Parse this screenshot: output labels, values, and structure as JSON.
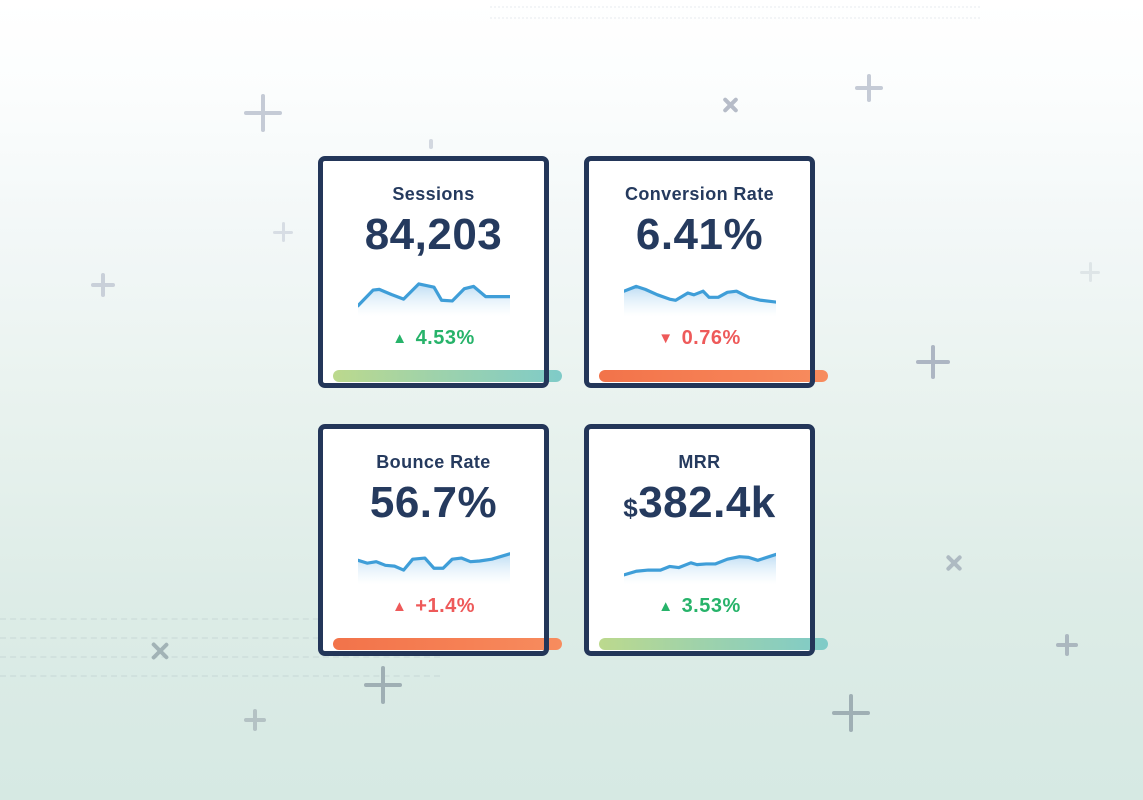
{
  "cards": [
    {
      "id": "sessions",
      "title": "Sessions",
      "value_prefix": "",
      "value": "84,203",
      "delta_icon": "▲",
      "delta": "4.53%",
      "delta_direction": "up",
      "delta_sentiment": "positive",
      "trend_bar": "green-teal-gradient"
    },
    {
      "id": "conversion-rate",
      "title": "Conversion Rate",
      "value_prefix": "",
      "value": "6.41%",
      "delta_icon": "▼",
      "delta": "0.76%",
      "delta_direction": "down",
      "delta_sentiment": "negative",
      "trend_bar": "orange-gradient"
    },
    {
      "id": "bounce-rate",
      "title": "Bounce Rate",
      "value_prefix": "",
      "value": "56.7%",
      "delta_icon": "▲",
      "delta": "+1.4%",
      "delta_direction": "up",
      "delta_sentiment": "negative",
      "trend_bar": "orange-gradient"
    },
    {
      "id": "mrr",
      "title": "MRR",
      "value_prefix": "$",
      "value": "382.4k",
      "delta_icon": "▲",
      "delta": "3.53%",
      "delta_direction": "up",
      "delta_sentiment": "positive",
      "trend_bar": "green-teal-gradient"
    }
  ],
  "chart_data": [
    {
      "type": "line",
      "title": "Sessions sparkline",
      "x": [
        0,
        10,
        14,
        22,
        30,
        40,
        50,
        55,
        62,
        70,
        76,
        84,
        100
      ],
      "values": [
        15,
        58,
        60,
        46,
        33,
        75,
        66,
        30,
        28,
        62,
        68,
        40,
        40
      ],
      "xlabel": "",
      "ylabel": "",
      "axes": "none",
      "grid": false,
      "line_color": "#3f9ed8",
      "fill": "blue-fade-gradient"
    },
    {
      "type": "line",
      "title": "Conversion Rate sparkline",
      "x": [
        0,
        8,
        14,
        22,
        30,
        34,
        42,
        46,
        52,
        56,
        62,
        68,
        74,
        82,
        90,
        100
      ],
      "values": [
        55,
        68,
        60,
        45,
        33,
        30,
        50,
        45,
        55,
        38,
        38,
        52,
        55,
        38,
        30,
        25
      ],
      "xlabel": "",
      "ylabel": "",
      "axes": "none",
      "grid": false,
      "line_color": "#3f9ed8",
      "fill": "blue-fade-gradient"
    },
    {
      "type": "line",
      "title": "Bounce Rate sparkline",
      "x": [
        0,
        6,
        12,
        18,
        24,
        30,
        36,
        44,
        50,
        56,
        62,
        68,
        74,
        80,
        88,
        100
      ],
      "values": [
        52,
        44,
        48,
        38,
        36,
        25,
        55,
        58,
        30,
        30,
        55,
        58,
        48,
        50,
        55,
        70
      ],
      "xlabel": "",
      "ylabel": "",
      "axes": "none",
      "grid": false,
      "line_color": "#3f9ed8",
      "fill": "blue-fade-gradient"
    },
    {
      "type": "line",
      "title": "MRR sparkline",
      "x": [
        0,
        8,
        16,
        24,
        30,
        36,
        44,
        48,
        54,
        60,
        68,
        76,
        82,
        88,
        100
      ],
      "values": [
        12,
        22,
        25,
        25,
        35,
        32,
        45,
        40,
        42,
        42,
        55,
        62,
        60,
        52,
        68
      ],
      "xlabel": "",
      "ylabel": "",
      "axes": "none",
      "grid": false,
      "line_color": "#3f9ed8",
      "fill": "blue-fade-gradient"
    }
  ],
  "colors": {
    "navy_text_border": "#253a5e",
    "positive_green": "#27b36a",
    "negative_red": "#ee5a5a",
    "sparkline_blue": "#3f9ed8",
    "sparkline_fill_top": "#7ab9e8",
    "bar_positive_start": "#bcd98d",
    "bar_positive_end": "#7fcbc8",
    "bar_negative_start": "#f2734a",
    "bar_negative_end": "#f78c5e",
    "background_top": "#ffffff",
    "background_bottom": "#d6e9e3",
    "decoration_gray": "#b0bac5"
  },
  "icons": {
    "up_triangle": "▲",
    "down_triangle": "▼",
    "plus_decoration": "+",
    "x_decoration": "×"
  }
}
